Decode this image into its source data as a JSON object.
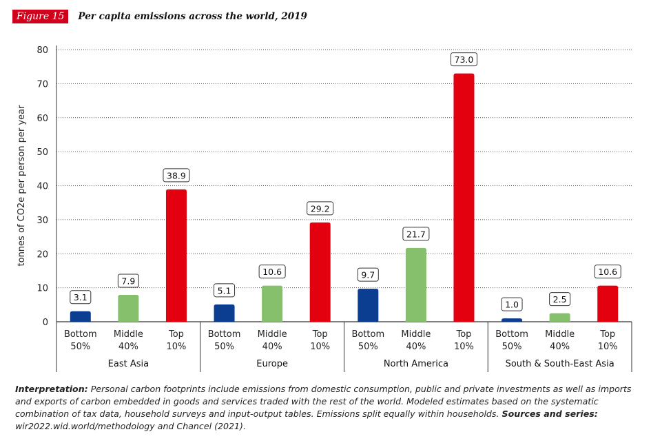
{
  "figure": {
    "label": "Figure 15",
    "title": "Per capita emissions across the world, 2019"
  },
  "note": {
    "interpretation_label": "Interpretation:",
    "interpretation_text": " Personal carbon footprints include emissions from domestic consumption, public and private investments as well as imports and exports of carbon embedded in goods and services traded with the rest of the world. Modeled estimates based on the systematic combination of tax data, household surveys and input-output tables. Emissions split equally within households. ",
    "sources_label": "Sources and series:",
    "sources_text": " wir2022.wid.world/methodology and Chancel (2021)."
  },
  "chart_data": {
    "type": "bar",
    "title": "Per capita emissions across the world, 2019",
    "ylabel": "tonnes of CO2e per person per year",
    "xlabel": "",
    "ylim": [
      0,
      80
    ],
    "yticks": [
      "0",
      "10",
      "20",
      "30",
      "40",
      "50",
      "60",
      "70",
      "80"
    ],
    "grid": true,
    "groups": [
      {
        "name": "East Asia",
        "bars": [
          {
            "label": [
              "Bottom",
              "50%"
            ],
            "value": 3.1,
            "value_label": "3.1",
            "color": "#0b3d91"
          },
          {
            "label": [
              "Middle",
              "40%"
            ],
            "value": 7.9,
            "value_label": "7.9",
            "color": "#86c06c"
          },
          {
            "label": [
              "Top",
              "10%"
            ],
            "value": 38.9,
            "value_label": "38.9",
            "color": "#e3000f"
          }
        ]
      },
      {
        "name": "Europe",
        "bars": [
          {
            "label": [
              "Bottom",
              "50%"
            ],
            "value": 5.1,
            "value_label": "5.1",
            "color": "#0b3d91"
          },
          {
            "label": [
              "Middle",
              "40%"
            ],
            "value": 10.6,
            "value_label": "10.6",
            "color": "#86c06c"
          },
          {
            "label": [
              "Top",
              "10%"
            ],
            "value": 29.2,
            "value_label": "29.2",
            "color": "#e3000f"
          }
        ]
      },
      {
        "name": "North America",
        "bars": [
          {
            "label": [
              "Bottom",
              "50%"
            ],
            "value": 9.7,
            "value_label": "9.7",
            "color": "#0b3d91"
          },
          {
            "label": [
              "Middle",
              "40%"
            ],
            "value": 21.7,
            "value_label": "21.7",
            "color": "#86c06c"
          },
          {
            "label": [
              "Top",
              "10%"
            ],
            "value": 73.0,
            "value_label": "73.0",
            "color": "#e3000f"
          }
        ]
      },
      {
        "name": "South & South-East Asia",
        "bars": [
          {
            "label": [
              "Bottom",
              "50%"
            ],
            "value": 1.0,
            "value_label": "1.0",
            "color": "#0b3d91"
          },
          {
            "label": [
              "Middle",
              "40%"
            ],
            "value": 2.5,
            "value_label": "2.5",
            "color": "#86c06c"
          },
          {
            "label": [
              "Top",
              "10%"
            ],
            "value": 10.6,
            "value_label": "10.6",
            "color": "#e3000f"
          }
        ]
      }
    ]
  }
}
